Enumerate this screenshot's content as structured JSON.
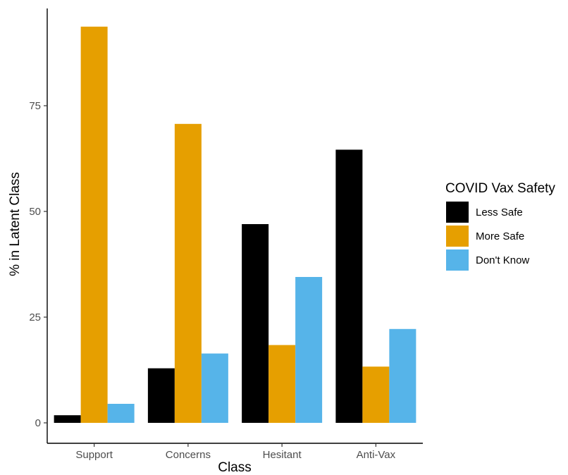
{
  "chart_data": {
    "type": "bar",
    "categories": [
      "Support",
      "Concerns",
      "Hesitant",
      "Anti-Vax"
    ],
    "series": [
      {
        "name": "Less Safe",
        "values": [
          1.8,
          12.9,
          47.0,
          64.6
        ],
        "color": "#000000"
      },
      {
        "name": "More Safe",
        "values": [
          93.7,
          70.7,
          18.4,
          13.3
        ],
        "color": "#E69F00"
      },
      {
        "name": "Don't Know",
        "values": [
          4.5,
          16.4,
          34.5,
          22.2
        ],
        "color": "#56B4E9"
      }
    ],
    "xlabel": "Class",
    "ylabel": "% in Latent Class",
    "ylim": [
      0,
      100
    ],
    "yticks": [
      0,
      25,
      50,
      75
    ],
    "legend": {
      "title": "COVID Vax Safety",
      "position": "right"
    },
    "grid": false
  }
}
